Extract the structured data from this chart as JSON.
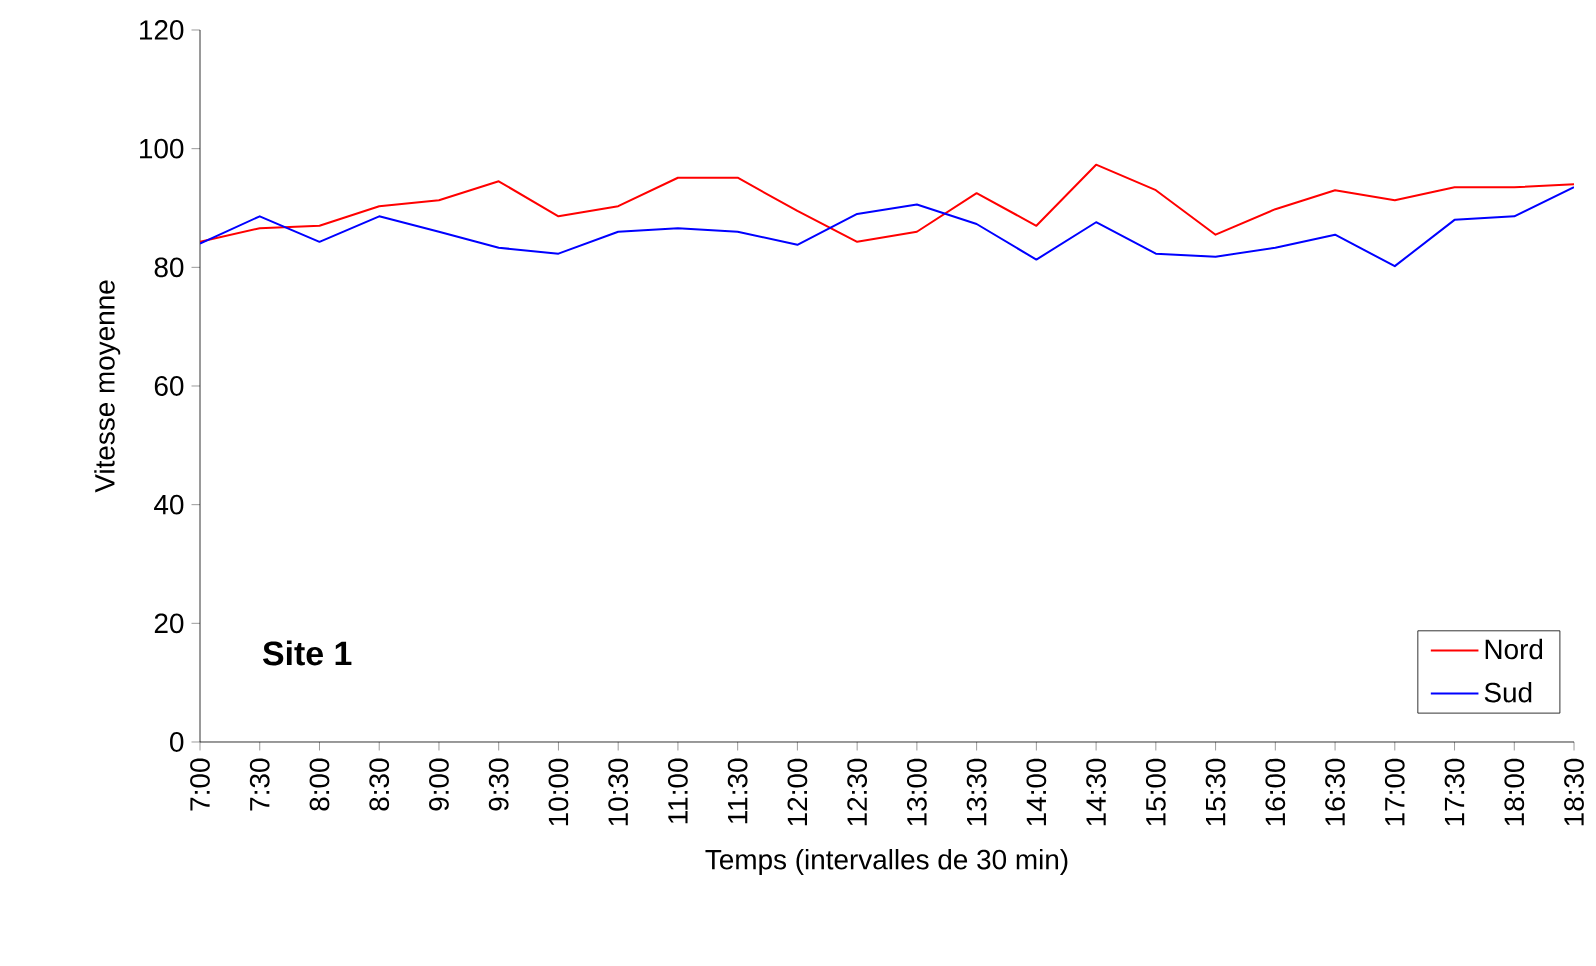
{
  "chart_data": {
    "type": "line",
    "xlabel": "Temps (intervalles de 30 min)",
    "ylabel": "Vitesse moyenne",
    "categories": [
      "7:00",
      "7:30",
      "8:00",
      "8:30",
      "9:00",
      "9:30",
      "10:00",
      "10:30",
      "11:00",
      "11:30",
      "12:00",
      "12:30",
      "13:00",
      "13:30",
      "14:00",
      "14:30",
      "15:00",
      "15:30",
      "16:00",
      "16:30",
      "17:00",
      "17:30",
      "18:00",
      "18:30"
    ],
    "series": [
      {
        "name": "Nord",
        "color": "#ff0000",
        "values": [
          84.3,
          86.6,
          87,
          90.3,
          91.3,
          94.5,
          88.6,
          90.3,
          95.1,
          95.1,
          89.5,
          84.3,
          86,
          92.5,
          87,
          97.3,
          93,
          85.5,
          89.8,
          93,
          91.3,
          93.5,
          93.5,
          94
        ]
      },
      {
        "name": "Sud",
        "color": "#0000ff",
        "values": [
          84,
          88.6,
          84.3,
          88.6,
          86,
          83.3,
          82.3,
          86,
          86.6,
          86,
          83.8,
          89,
          90.6,
          87.3,
          81.3,
          87.6,
          82.3,
          81.8,
          83.3,
          85.5,
          80.2,
          88,
          88.6,
          93.5
        ]
      }
    ],
    "ylim": [
      0,
      120
    ],
    "yticks": [
      0,
      20,
      40,
      60,
      80,
      100,
      120
    ],
    "legend": "bottom right",
    "annotations": [
      "Site 1"
    ]
  }
}
